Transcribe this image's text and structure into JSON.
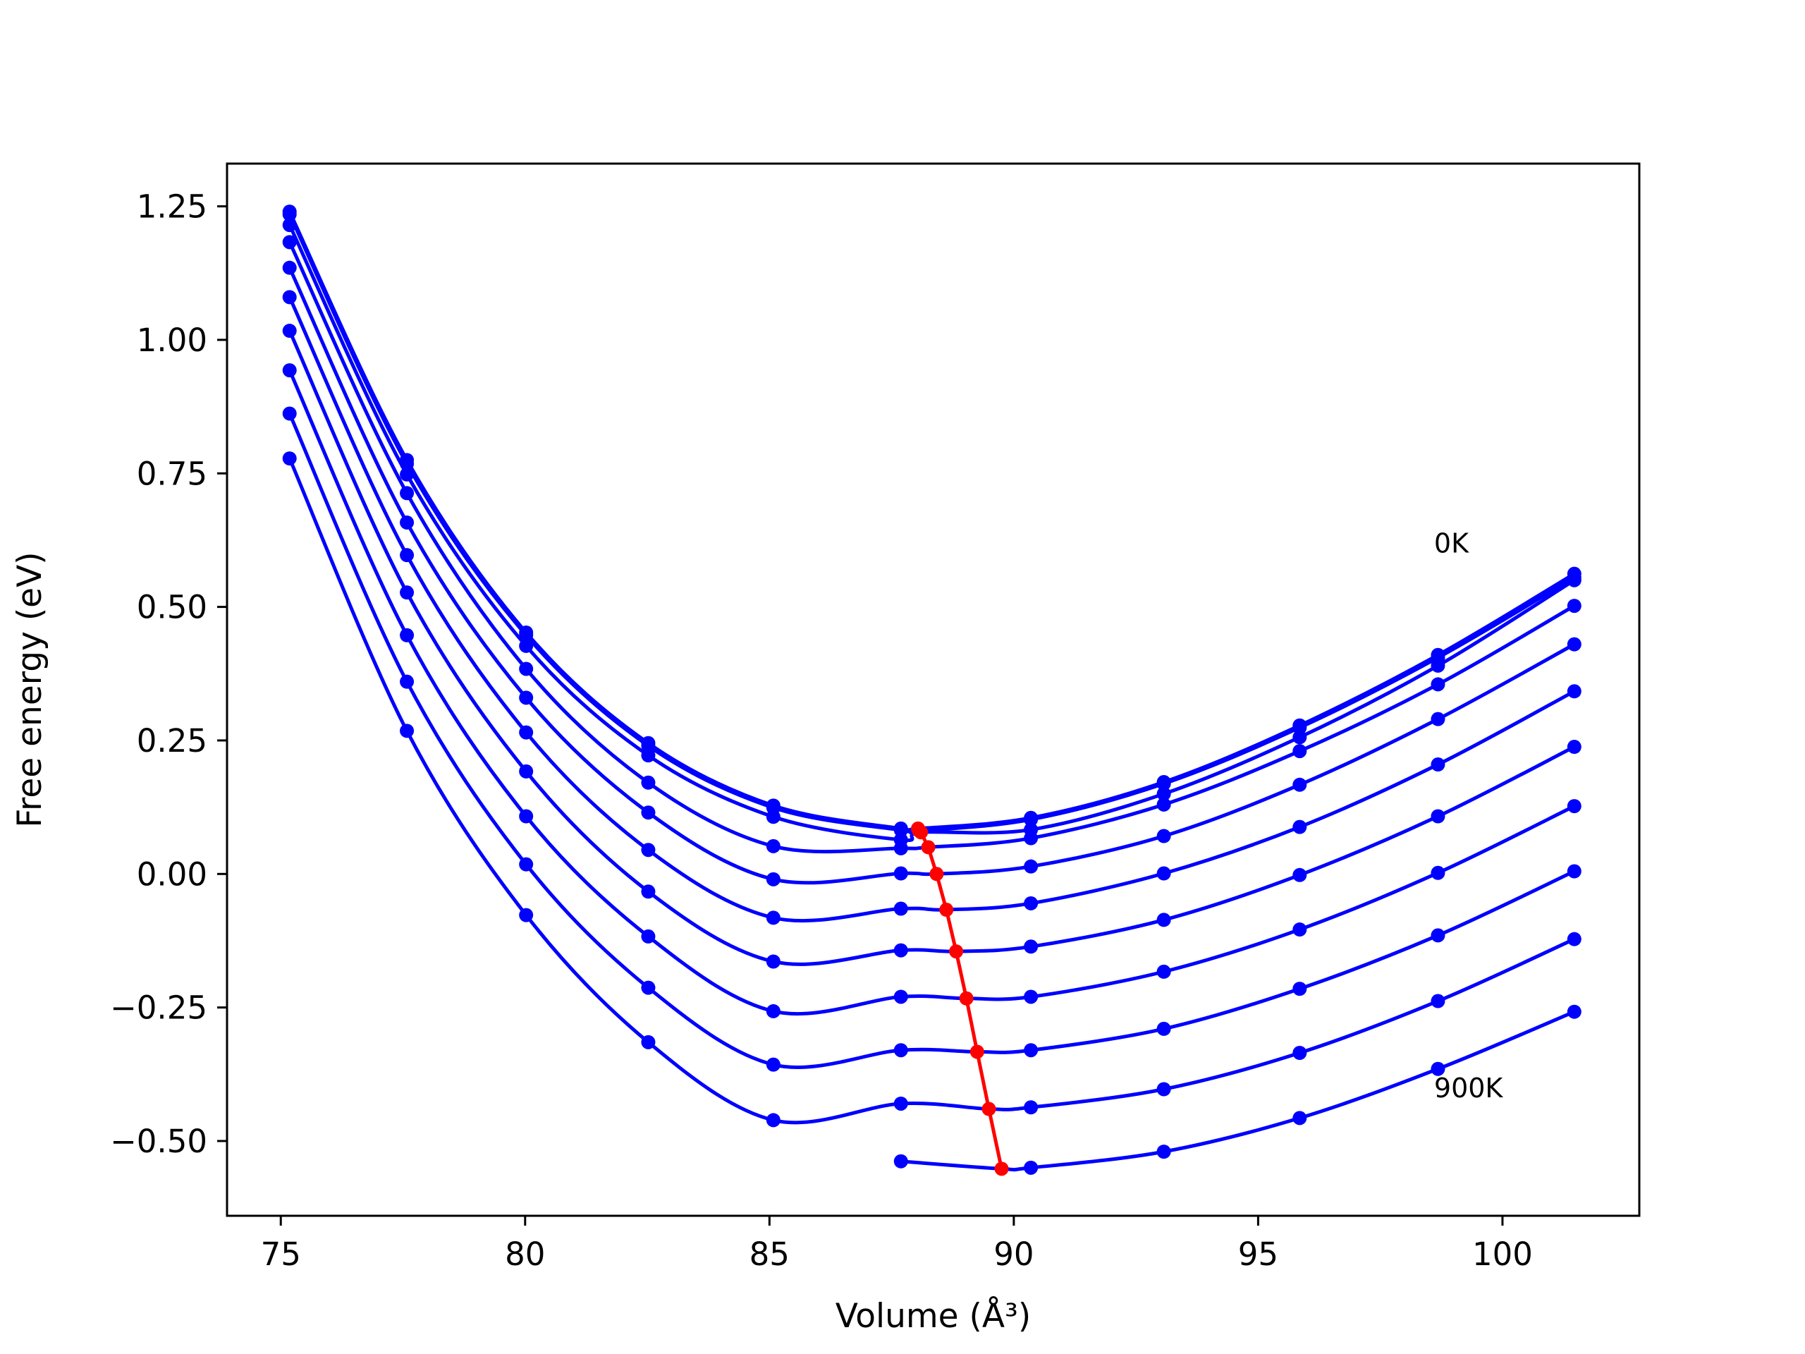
{
  "chart_data": {
    "type": "line",
    "xlabel": "Volume (Å³)",
    "ylabel": "Free energy (eV)",
    "xlim": [
      73.9,
      102.8
    ],
    "ylim": [
      -0.64,
      1.33
    ],
    "xticks": [
      75,
      80,
      85,
      90,
      95,
      100
    ],
    "yticks": [
      -0.5,
      -0.25,
      0.0,
      0.25,
      0.5,
      0.75,
      1.0,
      1.25
    ],
    "xtick_labels": [
      "75",
      "80",
      "85",
      "90",
      "95",
      "100"
    ],
    "ytick_labels": [
      "−0.50",
      "−0.25",
      "0.00",
      "0.25",
      "0.50",
      "0.75",
      "1.00",
      "1.25"
    ],
    "grid": false,
    "legend": "none",
    "annotations": [
      {
        "text": "0K",
        "x": 98.6,
        "y": 0.62
      },
      {
        "text": "900K",
        "x": 98.6,
        "y": -0.4
      }
    ],
    "colors": {
      "curves": "#0000ff",
      "minima": "#ff0000",
      "axes": "#000000"
    },
    "x": [
      75.18,
      77.58,
      80.02,
      82.52,
      85.08,
      87.69,
      90.35,
      93.07,
      95.85,
      98.68,
      101.47
    ],
    "series": [
      {
        "values": [
          1.24,
          0.775,
          0.452,
          0.245,
          0.128,
          0.085,
          0.105,
          0.172,
          0.278,
          0.41,
          0.562
        ],
        "min": [
          88.04,
          0.085
        ]
      },
      {
        "values": [
          1.235,
          0.768,
          0.447,
          0.24,
          0.124,
          0.082,
          0.102,
          0.169,
          0.274,
          0.405,
          0.555
        ],
        "min": [
          88.06,
          0.081
        ]
      },
      {
        "values": [
          1.215,
          0.748,
          0.427,
          0.222,
          0.107,
          0.064,
          0.083,
          0.15,
          0.256,
          0.39,
          0.55
        ],
        "min": [
          88.1,
          0.078
        ]
      },
      {
        "values": [
          1.183,
          0.713,
          0.384,
          0.171,
          0.052,
          0.048,
          0.067,
          0.13,
          0.23,
          0.355,
          0.502
        ],
        "min": [
          88.25,
          0.05
        ]
      },
      {
        "values": [
          1.135,
          0.658,
          0.33,
          0.115,
          -0.01,
          0.001,
          0.014,
          0.071,
          0.167,
          0.29,
          0.43
        ],
        "min": [
          88.42,
          0.0
        ]
      },
      {
        "values": [
          1.08,
          0.597,
          0.265,
          0.045,
          -0.082,
          -0.065,
          -0.055,
          0.001,
          0.088,
          0.205,
          0.342
        ],
        "min": [
          88.62,
          -0.067
        ]
      },
      {
        "values": [
          1.017,
          0.527,
          0.192,
          -0.033,
          -0.164,
          -0.143,
          -0.136,
          -0.086,
          -0.002,
          0.108,
          0.238
        ],
        "min": [
          88.82,
          -0.145
        ]
      },
      {
        "values": [
          0.943,
          0.447,
          0.108,
          -0.117,
          -0.257,
          -0.23,
          -0.23,
          -0.183,
          -0.104,
          0.002,
          0.127
        ],
        "min": [
          89.03,
          -0.233
        ]
      },
      {
        "values": [
          0.862,
          0.36,
          0.018,
          -0.213,
          -0.357,
          -0.33,
          -0.33,
          -0.29,
          -0.215,
          -0.115,
          0.005
        ],
        "min": [
          89.25,
          -0.333
        ]
      },
      {
        "values": [
          0.778,
          0.268,
          -0.077,
          -0.315,
          -0.461,
          -0.43,
          -0.437,
          -0.403,
          -0.335,
          -0.238,
          -0.122
        ],
        "min": [
          89.49,
          -0.44
        ]
      },
      {
        "values": [
          null,
          null,
          null,
          null,
          null,
          -0.538,
          -0.55,
          -0.52,
          -0.457,
          -0.365,
          -0.258
        ],
        "min": [
          89.75,
          -0.552
        ]
      }
    ]
  }
}
